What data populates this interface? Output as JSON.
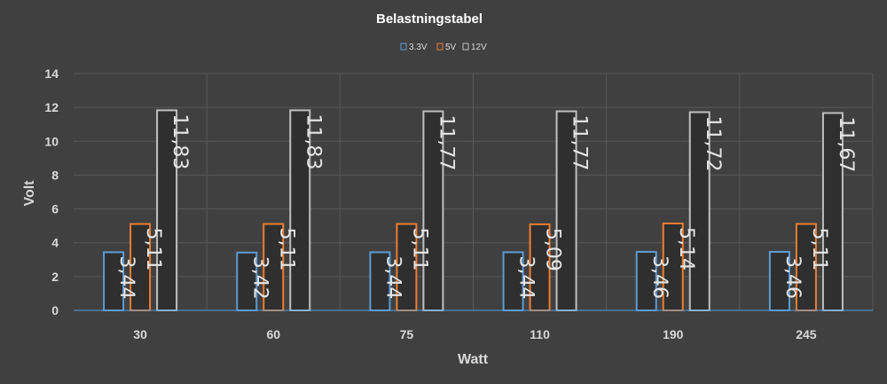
{
  "chart_data": {
    "type": "bar",
    "title": "Belastningstabel",
    "xlabel": "Watt",
    "ylabel": "Volt",
    "categories": [
      "30",
      "60",
      "75",
      "110",
      "190",
      "245"
    ],
    "ylim": [
      0,
      14
    ],
    "yticks": [
      0,
      2,
      4,
      6,
      8,
      10,
      12,
      14
    ],
    "grid": true,
    "legend_position": "top",
    "series": [
      {
        "name": "3.3V",
        "color": "#5b9bd5",
        "values": [
          3.44,
          3.42,
          3.44,
          3.44,
          3.46,
          3.46
        ],
        "labels": [
          "3,44",
          "3,42",
          "3,44",
          "3,44",
          "3,46",
          "3,46"
        ]
      },
      {
        "name": "5V",
        "color": "#ed7d31",
        "values": [
          5.11,
          5.11,
          5.11,
          5.09,
          5.14,
          5.11
        ],
        "labels": [
          "5,11",
          "5,11",
          "5,11",
          "5,09",
          "5,14",
          "5,11"
        ]
      },
      {
        "name": "12V",
        "color": "#bfbfbf",
        "values": [
          11.83,
          11.83,
          11.77,
          11.77,
          11.72,
          11.67
        ],
        "labels": [
          "11,83",
          "11,83",
          "11,77",
          "11,77",
          "11,72",
          "11,67"
        ]
      }
    ]
  }
}
